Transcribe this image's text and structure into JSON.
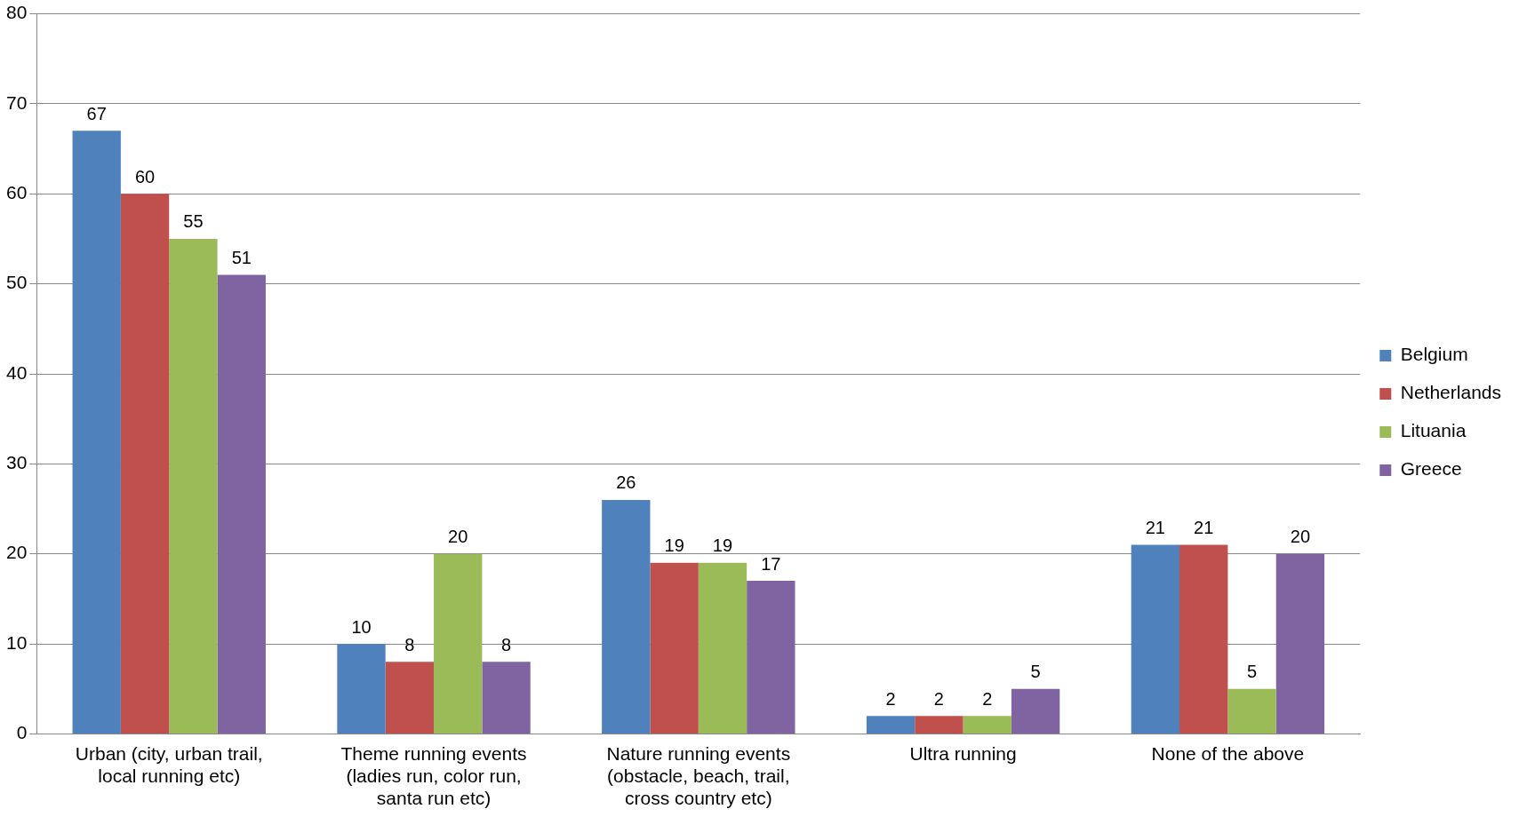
{
  "chart_data": {
    "type": "bar",
    "categories": [
      "Urban (city, urban trail, local running etc)",
      "Theme running events (ladies run, color run, santa run etc)",
      "Nature running events (obstacle, beach, trail, cross country etc)",
      "Ultra running",
      "None of the above"
    ],
    "series": [
      {
        "name": "Belgium",
        "color": "#4f81bd",
        "values": [
          67,
          10,
          26,
          2,
          21
        ]
      },
      {
        "name": "Netherlands",
        "color": "#c0504d",
        "values": [
          60,
          8,
          19,
          2,
          21
        ]
      },
      {
        "name": "Lituania",
        "color": "#9bbb59",
        "values": [
          55,
          20,
          19,
          2,
          5
        ]
      },
      {
        "name": "Greece",
        "color": "#8064a2",
        "values": [
          51,
          8,
          17,
          5,
          20
        ]
      }
    ],
    "ylim": [
      0,
      80
    ],
    "yticks": [
      0,
      10,
      20,
      30,
      40,
      50,
      60,
      70,
      80
    ],
    "grid": "y",
    "legend": "right",
    "data_labels": true
  }
}
